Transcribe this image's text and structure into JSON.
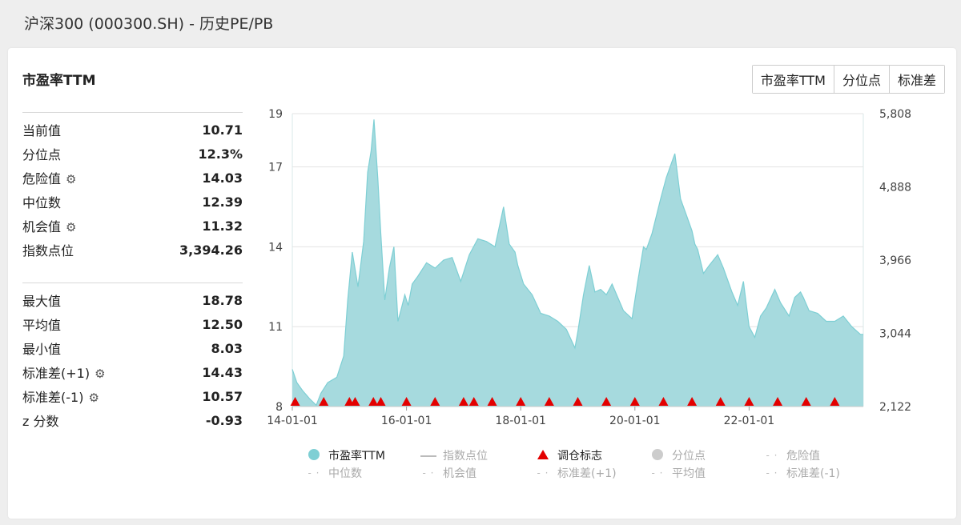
{
  "page_title": "沪深300 (000300.SH) - 历史PE/PB",
  "panel_title": "市盈率TTM",
  "tabs": [
    {
      "label": "市盈率TTM"
    },
    {
      "label": "分位点"
    },
    {
      "label": "标准差"
    }
  ],
  "stats_top": [
    {
      "label": "当前值",
      "value": "10.71",
      "icon": ""
    },
    {
      "label": "分位点",
      "value": "12.3%",
      "icon": ""
    },
    {
      "label": "危险值",
      "value": "14.03",
      "icon": "gear-icon"
    },
    {
      "label": "中位数",
      "value": "12.39",
      "icon": ""
    },
    {
      "label": "机会值",
      "value": "11.32",
      "icon": "gear-icon"
    },
    {
      "label": "指数点位",
      "value": "3,394.26",
      "icon": ""
    }
  ],
  "stats_bottom": [
    {
      "label": "最大值",
      "value": "18.78",
      "icon": ""
    },
    {
      "label": "平均值",
      "value": "12.50",
      "icon": ""
    },
    {
      "label": "最小值",
      "value": "8.03",
      "icon": ""
    },
    {
      "label": "标准差(+1)",
      "value": "14.43",
      "icon": "gear-icon"
    },
    {
      "label": "标准差(-1)",
      "value": "10.57",
      "icon": "gear-icon"
    },
    {
      "label": "z 分数",
      "value": "-0.93",
      "icon": ""
    }
  ],
  "legend": [
    {
      "label": "市盈率TTM",
      "marker": "dot",
      "color": "#7ecfd4",
      "on": true
    },
    {
      "label": "指数点位",
      "marker": "line",
      "color": "#bbbbbb",
      "on": false
    },
    {
      "label": "调仓标志",
      "marker": "triangle",
      "color": "#e30000",
      "on": true
    },
    {
      "label": "分位点",
      "marker": "dot",
      "color": "#cccccc",
      "on": false
    },
    {
      "label": "危险值",
      "marker": "dash",
      "color": "#bbbbbb",
      "on": false
    },
    {
      "label": "中位数",
      "marker": "dash",
      "color": "#bbbbbb",
      "on": false
    },
    {
      "label": "机会值",
      "marker": "dash",
      "color": "#bbbbbb",
      "on": false
    },
    {
      "label": "标准差(+1)",
      "marker": "dash",
      "color": "#bbbbbb",
      "on": false
    },
    {
      "label": "平均值",
      "marker": "dash",
      "color": "#bbbbbb",
      "on": false
    },
    {
      "label": "标准差(-1)",
      "marker": "dash",
      "color": "#bbbbbb",
      "on": false
    }
  ],
  "chart_data": {
    "type": "area",
    "title": "",
    "series_name": "市盈率TTM",
    "area_color": "#a6dade",
    "line_color": "#7ecfd4",
    "marker_color": "#e30000",
    "ylim": [
      8,
      19
    ],
    "y_ticks": [
      8,
      11,
      14,
      17,
      19
    ],
    "y2lim": [
      2122,
      5808
    ],
    "y2_ticks": [
      "2,122",
      "3,044",
      "3,966",
      "4,888",
      "5,808"
    ],
    "xlim": [
      2014.0,
      2024.0
    ],
    "x_ticks": [
      {
        "x": 2014.0,
        "label": "14-01-01"
      },
      {
        "x": 2016.0,
        "label": "16-01-01"
      },
      {
        "x": 2018.0,
        "label": "18-01-01"
      },
      {
        "x": 2020.0,
        "label": "20-01-01"
      },
      {
        "x": 2022.0,
        "label": "22-01-01"
      }
    ],
    "x": [
      2014.0,
      2014.08,
      2014.18,
      2014.3,
      2014.42,
      2014.5,
      2014.62,
      2014.78,
      2014.9,
      2014.97,
      2015.05,
      2015.15,
      2015.25,
      2015.32,
      2015.38,
      2015.43,
      2015.5,
      2015.55,
      2015.62,
      2015.7,
      2015.78,
      2015.85,
      2015.9,
      2015.97,
      2016.03,
      2016.1,
      2016.2,
      2016.35,
      2016.5,
      2016.65,
      2016.8,
      2016.95,
      2017.1,
      2017.25,
      2017.4,
      2017.55,
      2017.7,
      2017.8,
      2017.9,
      2017.95,
      2018.05,
      2018.2,
      2018.35,
      2018.5,
      2018.65,
      2018.8,
      2018.95,
      2019.0,
      2019.1,
      2019.2,
      2019.3,
      2019.4,
      2019.5,
      2019.6,
      2019.7,
      2019.8,
      2019.95,
      2020.05,
      2020.15,
      2020.2,
      2020.3,
      2020.45,
      2020.55,
      2020.7,
      2020.8,
      2020.9,
      2021.0,
      2021.05,
      2021.1,
      2021.2,
      2021.3,
      2021.45,
      2021.55,
      2021.7,
      2021.8,
      2021.9,
      2022.0,
      2022.1,
      2022.2,
      2022.3,
      2022.45,
      2022.55,
      2022.7,
      2022.8,
      2022.9,
      2022.95,
      2023.05,
      2023.2,
      2023.35,
      2023.5,
      2023.65,
      2023.8,
      2023.95,
      2024.0
    ],
    "values": [
      9.4,
      8.9,
      8.6,
      8.3,
      8.05,
      8.5,
      8.9,
      9.1,
      9.9,
      12.0,
      13.8,
      12.5,
      14.2,
      16.8,
      17.6,
      18.78,
      16.5,
      14.5,
      12.0,
      13.2,
      14.0,
      11.2,
      11.6,
      12.2,
      11.8,
      12.6,
      12.9,
      13.4,
      13.2,
      13.5,
      13.6,
      12.7,
      13.7,
      14.3,
      14.2,
      14.0,
      15.5,
      14.1,
      13.8,
      13.3,
      12.6,
      12.2,
      11.5,
      11.4,
      11.2,
      10.9,
      10.2,
      10.8,
      12.2,
      13.3,
      12.3,
      12.4,
      12.2,
      12.6,
      12.1,
      11.6,
      11.3,
      12.7,
      14.0,
      13.9,
      14.5,
      15.8,
      16.6,
      17.5,
      15.8,
      15.2,
      14.6,
      14.1,
      13.9,
      13.0,
      13.3,
      13.7,
      13.2,
      12.3,
      11.8,
      12.7,
      11.0,
      10.6,
      11.4,
      11.7,
      12.4,
      11.9,
      11.4,
      12.1,
      12.3,
      12.1,
      11.6,
      11.5,
      11.2,
      11.2,
      11.4,
      11.0,
      10.71,
      10.71
    ],
    "rebalance_marks": [
      2014.05,
      2014.55,
      2015.0,
      2015.1,
      2015.42,
      2015.55,
      2016.0,
      2016.5,
      2017.0,
      2017.18,
      2017.5,
      2018.0,
      2018.5,
      2019.0,
      2019.5,
      2020.0,
      2020.5,
      2021.0,
      2021.5,
      2022.0,
      2022.5,
      2023.0,
      2023.5
    ]
  }
}
